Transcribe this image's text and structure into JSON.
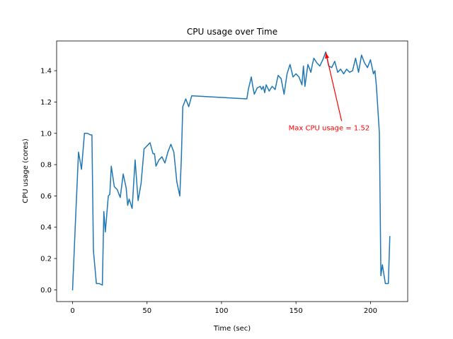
{
  "chart_data": {
    "type": "line",
    "title": "CPU usage over Time",
    "xlabel": "Time (sec)",
    "ylabel": "CPU usage (cores)",
    "xlim": [
      -10.7,
      225.0
    ],
    "ylim": [
      -0.075,
      1.59
    ],
    "xticks": [
      0,
      50,
      100,
      150,
      200
    ],
    "yticks": [
      0.0,
      0.2,
      0.4,
      0.6,
      0.8,
      1.0,
      1.2,
      1.4
    ],
    "xtick_labels": [
      "0",
      "50",
      "100",
      "150",
      "200"
    ],
    "ytick_labels": [
      "0.0",
      "0.2",
      "0.4",
      "0.6",
      "0.8",
      "1.0",
      "1.2",
      "1.4"
    ],
    "grid": false,
    "line_color": "#1f77b4",
    "series": [
      {
        "x": [
          0,
          2,
          4,
          6,
          8,
          10,
          12,
          13,
          14,
          16,
          18,
          20,
          21,
          22,
          24,
          25,
          26,
          28,
          30,
          32,
          34,
          36,
          37,
          38,
          40,
          42,
          44,
          46,
          48,
          50,
          52,
          54,
          55,
          56,
          58,
          60,
          62,
          64,
          66,
          68,
          70,
          72,
          73,
          74,
          76,
          78,
          80,
          117,
          118,
          120,
          121,
          122,
          124,
          126,
          127,
          128,
          129,
          130,
          132,
          134,
          136,
          138,
          140,
          142,
          144,
          146,
          148,
          150,
          152,
          154,
          155,
          156,
          158,
          160,
          161,
          162,
          164,
          166,
          168,
          170,
          172,
          174,
          176,
          178,
          180,
          182,
          184,
          186,
          188,
          190,
          192,
          194,
          196,
          198,
          200,
          202,
          203,
          204,
          206,
          207,
          208,
          210,
          212,
          213
        ],
        "y": [
          0.0,
          0.45,
          0.88,
          0.77,
          1.0,
          1.0,
          0.99,
          0.99,
          0.25,
          0.04,
          0.04,
          0.03,
          0.5,
          0.37,
          0.6,
          0.61,
          0.79,
          0.66,
          0.64,
          0.59,
          0.74,
          0.65,
          0.54,
          0.58,
          0.52,
          0.83,
          0.57,
          0.68,
          0.9,
          0.92,
          0.94,
          0.87,
          0.87,
          0.79,
          0.83,
          0.85,
          0.81,
          0.88,
          0.93,
          0.88,
          0.69,
          0.6,
          0.83,
          1.17,
          1.22,
          1.17,
          1.24,
          1.22,
          1.28,
          1.36,
          1.3,
          1.25,
          1.29,
          1.3,
          1.28,
          1.3,
          1.26,
          1.31,
          1.27,
          1.3,
          1.28,
          1.37,
          1.35,
          1.25,
          1.38,
          1.44,
          1.36,
          1.38,
          1.36,
          1.31,
          1.43,
          1.3,
          1.44,
          1.39,
          1.44,
          1.48,
          1.45,
          1.43,
          1.47,
          1.52,
          1.43,
          1.42,
          1.46,
          1.39,
          1.41,
          1.38,
          1.41,
          1.39,
          1.4,
          1.48,
          1.39,
          1.5,
          1.45,
          1.42,
          1.47,
          1.38,
          1.4,
          1.3,
          1.0,
          0.09,
          0.16,
          0.04,
          0.04,
          0.34
        ]
      }
    ],
    "annotation": {
      "text": "Max CPU usage = 1.52",
      "point": [
        170,
        1.52
      ],
      "text_pos": [
        145,
        1.02
      ],
      "color": "#ff0000"
    }
  }
}
